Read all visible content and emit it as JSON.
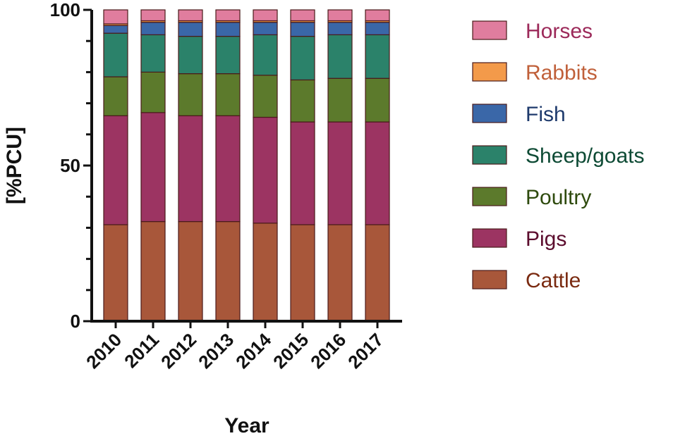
{
  "chart_data": {
    "type": "bar",
    "stacked": true,
    "title": "",
    "xlabel": "Year",
    "ylabel": "[%PCU]",
    "ylim": [
      0,
      100
    ],
    "yticks": [
      0,
      50,
      100
    ],
    "ytick_labels": [
      "0",
      "50",
      "100"
    ],
    "categories": [
      "2010",
      "2011",
      "2012",
      "2013",
      "2014",
      "2015",
      "2016",
      "2017"
    ],
    "legend_position": "right",
    "series": [
      {
        "name": "Cattle",
        "color": "#a8573a",
        "text_color": "#7a2a10",
        "values": [
          31,
          32,
          32,
          32,
          31.5,
          31,
          31,
          31
        ]
      },
      {
        "name": "Pigs",
        "color": "#9c3462",
        "text_color": "#5c0d2e",
        "values": [
          35,
          35,
          34,
          34,
          34,
          33,
          33,
          33
        ]
      },
      {
        "name": "Poultry",
        "color": "#5c7a2c",
        "text_color": "#2e4a0d",
        "values": [
          12.5,
          13,
          13.5,
          13.5,
          13.5,
          13.5,
          14,
          14
        ]
      },
      {
        "name": "Sheep/goats",
        "color": "#2b826a",
        "text_color": "#0d4a34",
        "values": [
          14,
          12,
          12,
          12,
          13,
          14,
          14,
          14
        ]
      },
      {
        "name": "Fish",
        "color": "#3a67a8",
        "text_color": "#1e3a6c",
        "values": [
          2.5,
          4,
          4.5,
          4.5,
          4,
          4.5,
          4,
          4
        ]
      },
      {
        "name": "Rabbits",
        "color": "#f39a4a",
        "text_color": "#c0603a",
        "values": [
          0.5,
          0.5,
          0.5,
          0.5,
          0.5,
          0.5,
          0.5,
          0.5
        ]
      },
      {
        "name": "Horses",
        "color": "#e07d9e",
        "text_color": "#9c2a5a",
        "values": [
          4.5,
          3.5,
          3.5,
          3.5,
          3.5,
          3.5,
          3.5,
          3.5
        ]
      }
    ]
  }
}
